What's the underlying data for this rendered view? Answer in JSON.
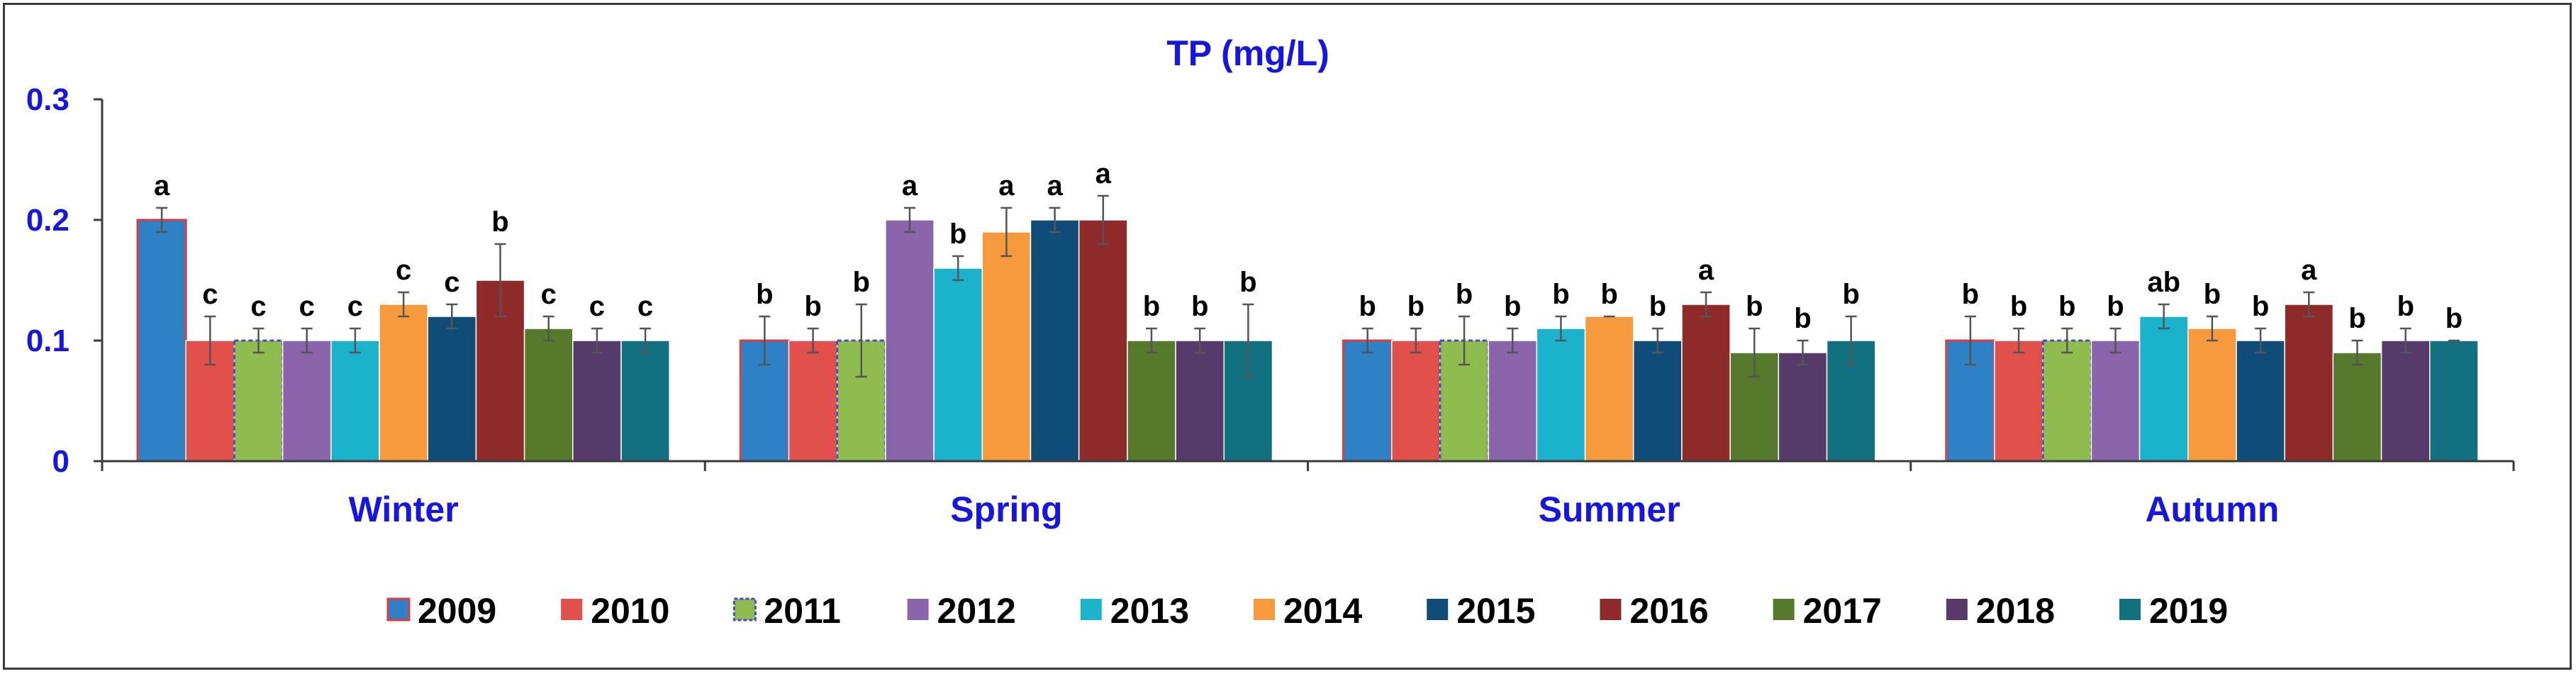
{
  "chart_data": {
    "type": "bar",
    "title": "TP (mg/L)",
    "xlabel": "",
    "ylabel": "",
    "ylim": [
      0,
      0.3
    ],
    "yticks": [
      "0",
      "0.1",
      "0.2",
      "0.3"
    ],
    "ytick_values": [
      0,
      0.1,
      0.2,
      0.3
    ],
    "categories": [
      "Winter",
      "Spring",
      "Summer",
      "Autumn"
    ],
    "series": [
      {
        "name": "2009",
        "color": "#2e81c4",
        "border": "#e03c3c",
        "values": [
          0.2,
          0.1,
          0.1,
          0.1
        ],
        "errors": [
          0.01,
          0.02,
          0.01,
          0.02
        ],
        "letters": [
          "a",
          "b",
          "b",
          "b"
        ]
      },
      {
        "name": "2010",
        "color": "#e2504c",
        "border": "#ffffff",
        "values": [
          0.1,
          0.1,
          0.1,
          0.1
        ],
        "errors": [
          0.02,
          0.01,
          0.01,
          0.01
        ],
        "letters": [
          "c",
          "b",
          "b",
          "b"
        ]
      },
      {
        "name": "2011",
        "color": "#8fbc4f",
        "border": "#4a4acc",
        "values": [
          0.1,
          0.1,
          0.1,
          0.1
        ],
        "errors": [
          0.01,
          0.03,
          0.02,
          0.01
        ],
        "letters": [
          "c",
          "b",
          "b",
          "b"
        ]
      },
      {
        "name": "2012",
        "color": "#8a65ab",
        "border": "#ffffff",
        "values": [
          0.1,
          0.2,
          0.1,
          0.1
        ],
        "errors": [
          0.01,
          0.01,
          0.01,
          0.01
        ],
        "letters": [
          "c",
          "a",
          "b",
          "b"
        ]
      },
      {
        "name": "2013",
        "color": "#1bb3cc",
        "border": "#ffffff",
        "values": [
          0.1,
          0.16,
          0.11,
          0.12
        ],
        "errors": [
          0.01,
          0.01,
          0.01,
          0.01
        ],
        "letters": [
          "c",
          "b",
          "b",
          "ab"
        ]
      },
      {
        "name": "2014",
        "color": "#f79a3e",
        "border": "#ffffff",
        "values": [
          0.13,
          0.19,
          0.12,
          0.11
        ],
        "errors": [
          0.01,
          0.02,
          0.0,
          0.01
        ],
        "letters": [
          "c",
          "a",
          "b",
          "b"
        ]
      },
      {
        "name": "2015",
        "color": "#0f4c78",
        "border": "#ffffff",
        "values": [
          0.12,
          0.2,
          0.1,
          0.1
        ],
        "errors": [
          0.01,
          0.01,
          0.01,
          0.01
        ],
        "letters": [
          "c",
          "a",
          "b",
          "b"
        ]
      },
      {
        "name": "2016",
        "color": "#8e2a2a",
        "border": "#ffffff",
        "values": [
          0.15,
          0.2,
          0.13,
          0.13
        ],
        "errors": [
          0.03,
          0.02,
          0.01,
          0.01
        ],
        "letters": [
          "b",
          "a",
          "a",
          "a"
        ]
      },
      {
        "name": "2017",
        "color": "#557a2b",
        "border": "#ffffff",
        "values": [
          0.11,
          0.1,
          0.09,
          0.09
        ],
        "errors": [
          0.01,
          0.01,
          0.02,
          0.01
        ],
        "letters": [
          "c",
          "b",
          "b",
          "b"
        ]
      },
      {
        "name": "2018",
        "color": "#553a6a",
        "border": "#ffffff",
        "values": [
          0.1,
          0.1,
          0.09,
          0.1
        ],
        "errors": [
          0.01,
          0.01,
          0.01,
          0.01
        ],
        "letters": [
          "c",
          "b",
          "b",
          "b"
        ]
      },
      {
        "name": "2019",
        "color": "#117180",
        "border": "#ffffff",
        "values": [
          0.1,
          0.1,
          0.1,
          0.1
        ],
        "errors": [
          0.01,
          0.03,
          0.02,
          0.0
        ],
        "letters": [
          "c",
          "b",
          "b",
          "b"
        ]
      }
    ],
    "legend_position": "bottom"
  }
}
